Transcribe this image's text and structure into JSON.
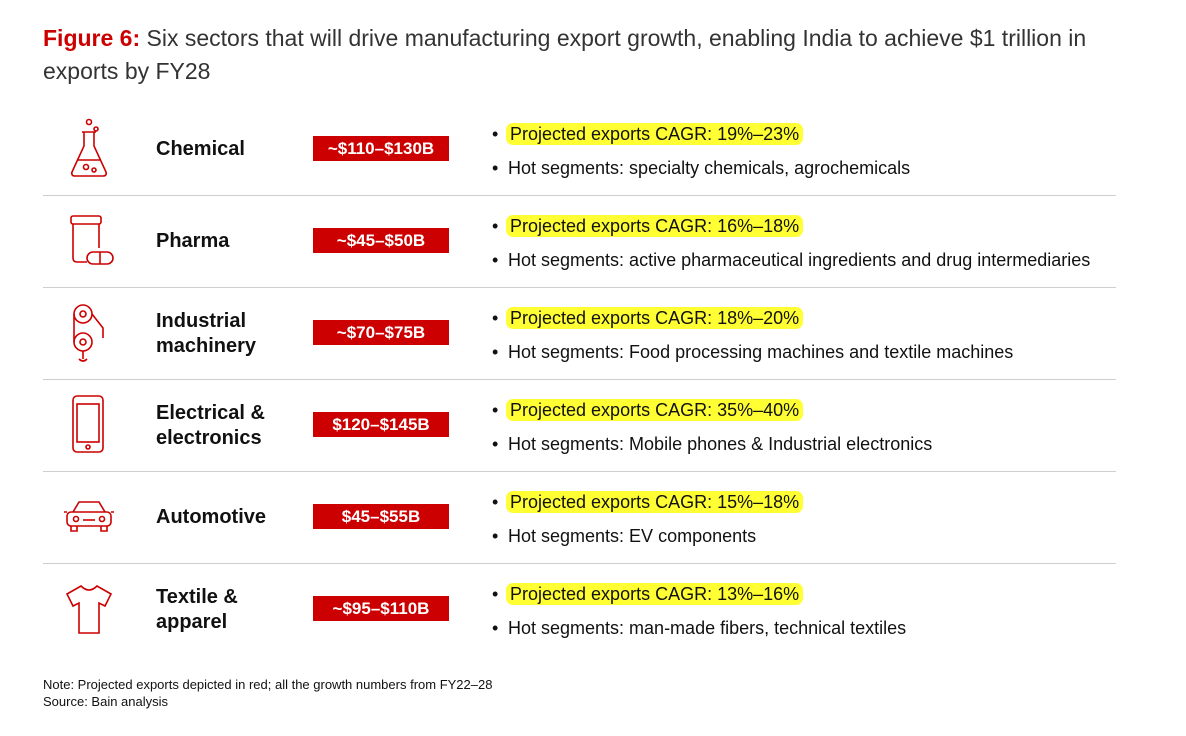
{
  "header": {
    "figure_label": "Figure 6:",
    "title": "Six sectors that will drive manufacturing export growth, enabling India to achieve $1 trillion in exports by FY28"
  },
  "colors": {
    "accent": "#cc0000",
    "highlight": "#ffff33"
  },
  "rows": [
    {
      "icon": "flask-icon",
      "sector": "Chemical",
      "value": "~$110–$130B",
      "cagr": "Projected exports CAGR: 19%–23%",
      "segments": "Hot segments: specialty chemicals, agrochemicals"
    },
    {
      "icon": "pill-jar-icon",
      "sector": "Pharma",
      "value": "~$45–$50B",
      "cagr": "Projected exports CAGR: 16%–18%",
      "segments": "Hot segments: active pharmaceutical ingredients and drug intermediaries"
    },
    {
      "icon": "gears-icon",
      "sector": "Industrial machinery",
      "value": "~$70–$75B",
      "cagr": "Projected exports CAGR: 18%–20%",
      "segments": "Hot segments: Food processing machines and textile machines"
    },
    {
      "icon": "phone-icon",
      "sector": "Electrical & electronics",
      "value": "$120–$145B",
      "cagr": "Projected exports CAGR: 35%–40%",
      "segments": "Hot segments: Mobile phones & Industrial electronics"
    },
    {
      "icon": "car-icon",
      "sector": "Automotive",
      "value": "$45–$55B",
      "cagr": "Projected exports CAGR: 15%–18%",
      "segments": "Hot segments: EV components"
    },
    {
      "icon": "tshirt-icon",
      "sector": "Textile & apparel",
      "value": "~$95–$110B",
      "cagr": "Projected exports CAGR: 13%–16%",
      "segments": "Hot segments: man-made fibers, technical textiles"
    }
  ],
  "footer": {
    "note": "Note: Projected exports depicted in red; all the growth numbers from FY22–28",
    "source": "Source: Bain analysis"
  }
}
